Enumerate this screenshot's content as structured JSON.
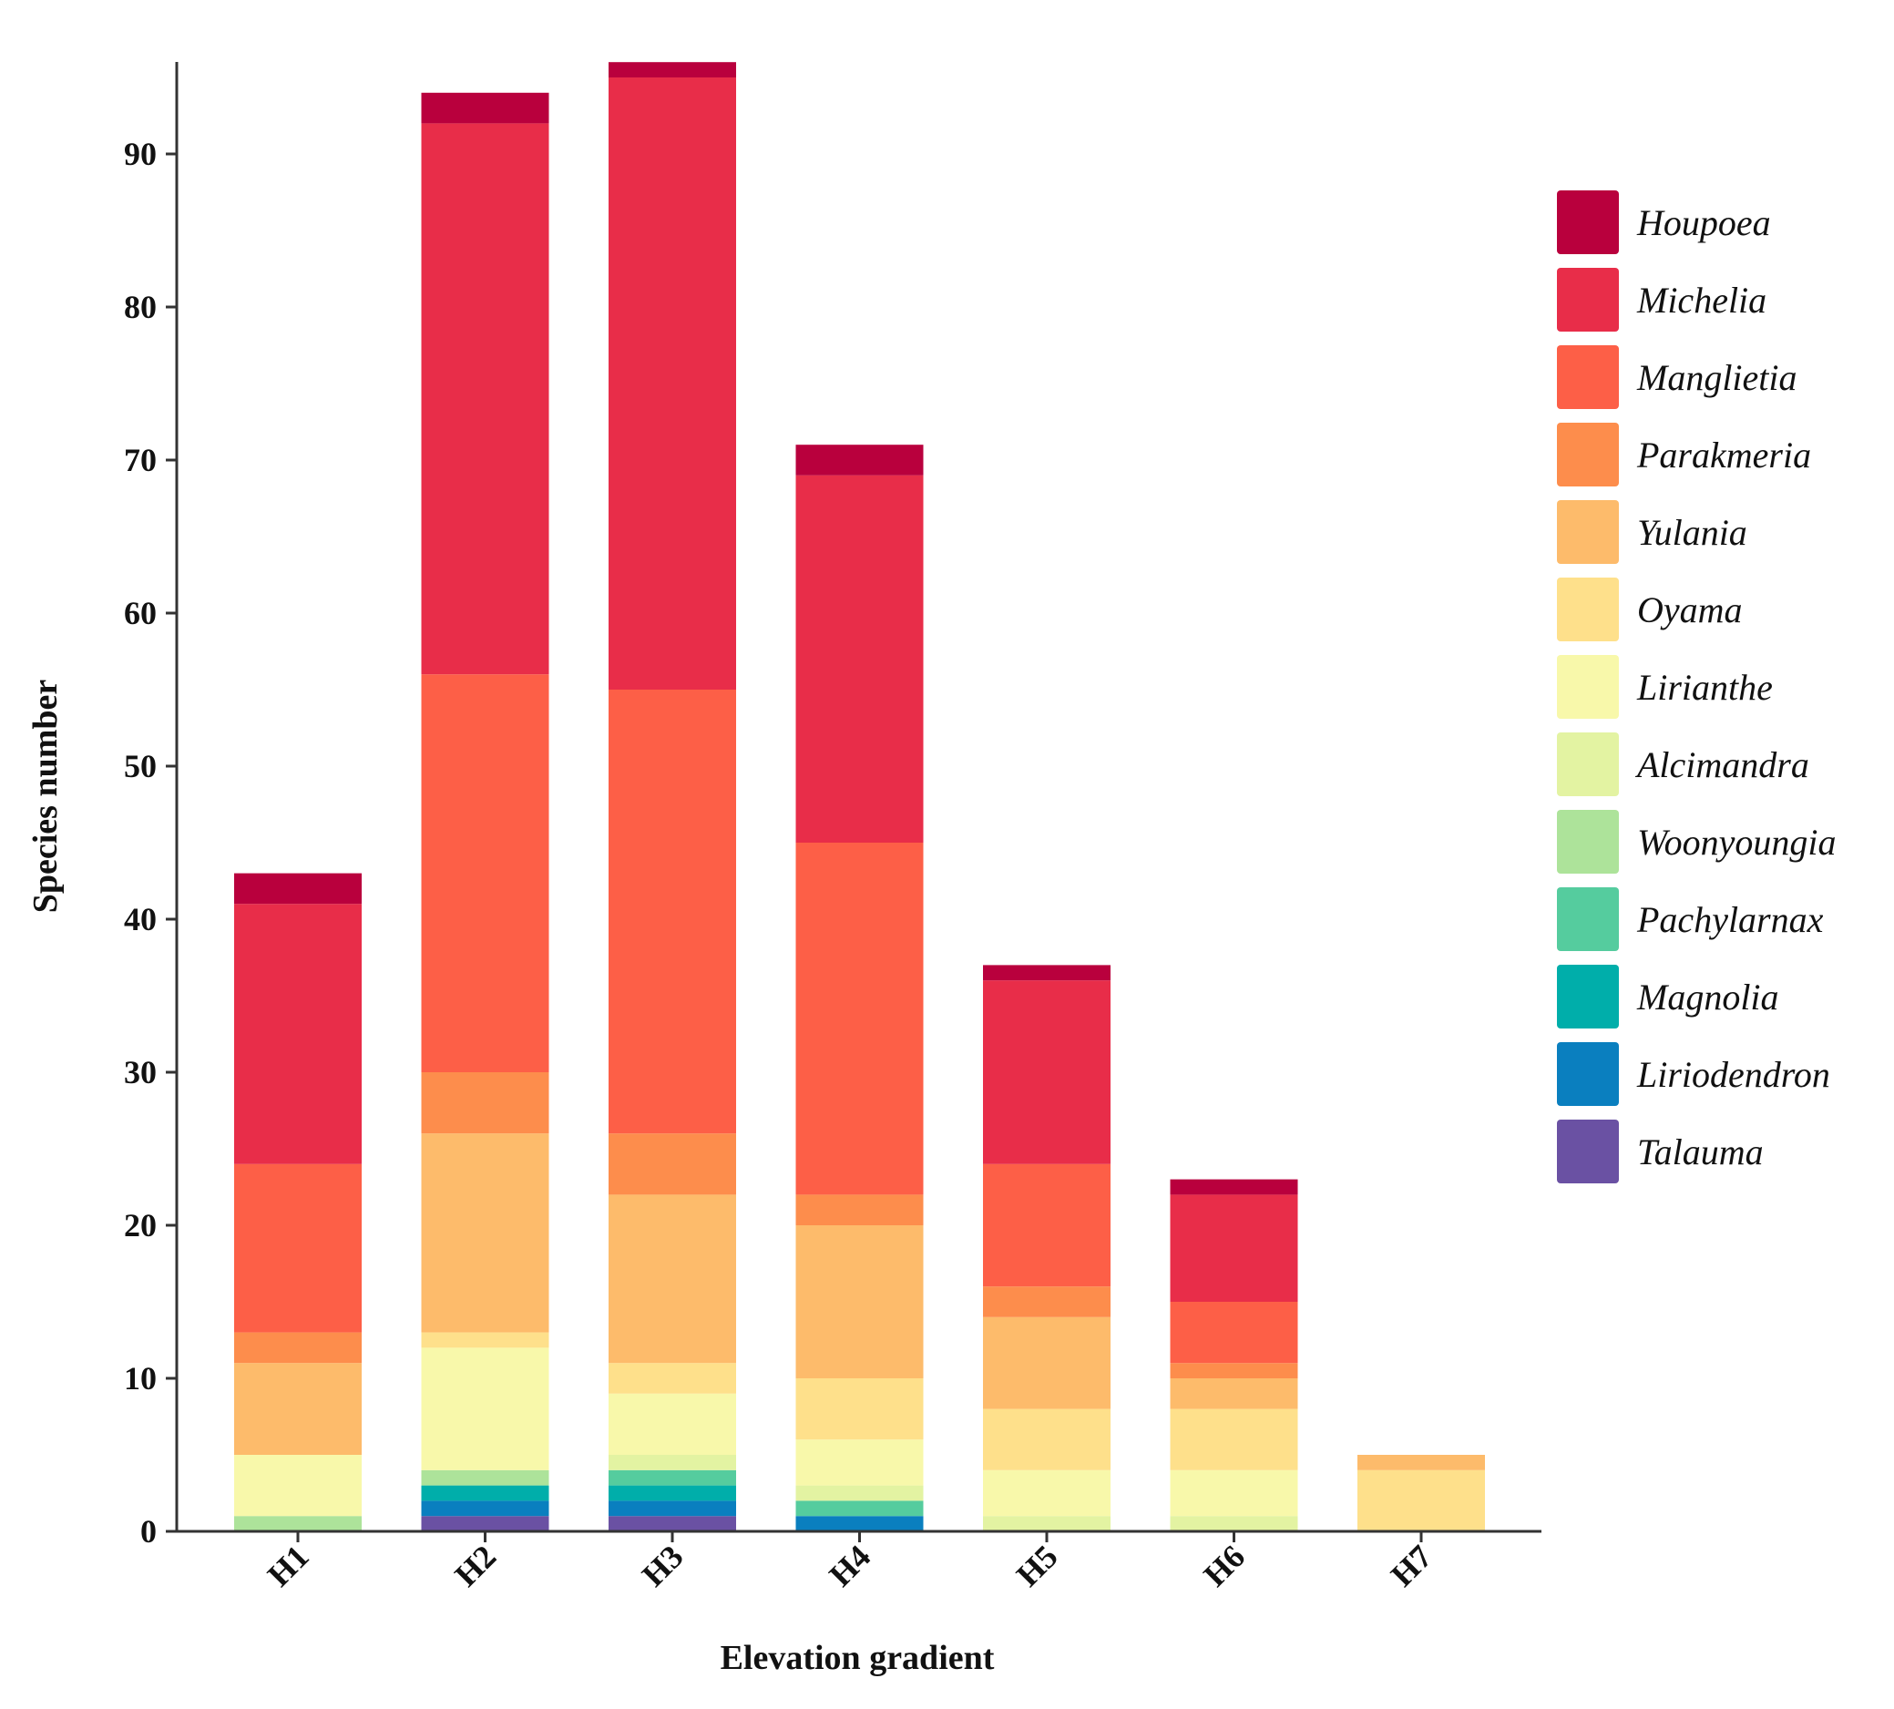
{
  "chart_data": {
    "type": "bar",
    "stacked": true,
    "xlabel": "Elevation gradient",
    "ylabel": "Species number",
    "ylim": [
      0,
      96
    ],
    "yticks": [
      0,
      10,
      20,
      30,
      40,
      50,
      60,
      70,
      80,
      90
    ],
    "categories": [
      "H1",
      "H2",
      "H3",
      "H4",
      "H5",
      "H6",
      "H7"
    ],
    "legend_position": "right",
    "grid": false,
    "series": [
      {
        "name": "Talauma",
        "color": "#6a51a3",
        "values": [
          0,
          1,
          1,
          0,
          0,
          0,
          0
        ]
      },
      {
        "name": "Liriodendron",
        "color": "#0a7fbf",
        "values": [
          0,
          1,
          1,
          1,
          0,
          0,
          0
        ]
      },
      {
        "name": "Magnolia",
        "color": "#00aeaa",
        "values": [
          0,
          1,
          1,
          0,
          0,
          0,
          0
        ]
      },
      {
        "name": "Pachylarnax",
        "color": "#55cc9e",
        "values": [
          0,
          0,
          1,
          1,
          0,
          0,
          0
        ]
      },
      {
        "name": "Woonyoungia",
        "color": "#ade39a",
        "values": [
          1,
          1,
          0,
          0,
          0,
          0,
          0
        ]
      },
      {
        "name": "Alcimandra",
        "color": "#e3f3a2",
        "values": [
          0,
          0,
          1,
          1,
          1,
          1,
          0
        ]
      },
      {
        "name": "Lirianthe",
        "color": "#f8f8aa",
        "values": [
          4,
          8,
          4,
          3,
          3,
          3,
          0
        ]
      },
      {
        "name": "Oyama",
        "color": "#fee08b",
        "values": [
          0,
          1,
          2,
          4,
          4,
          4,
          4
        ]
      },
      {
        "name": "Yulania",
        "color": "#fdbb6b",
        "values": [
          6,
          13,
          11,
          10,
          6,
          2,
          1
        ]
      },
      {
        "name": "Parakmeria",
        "color": "#fd8d4c",
        "values": [
          2,
          4,
          4,
          2,
          2,
          1,
          0
        ]
      },
      {
        "name": "Manglietia",
        "color": "#fd5f47",
        "values": [
          11,
          26,
          29,
          23,
          8,
          4,
          0
        ]
      },
      {
        "name": "Michelia",
        "color": "#e82d49",
        "values": [
          17,
          36,
          40,
          24,
          12,
          7,
          0
        ]
      },
      {
        "name": "Houpoea",
        "color": "#b9003d",
        "values": [
          2,
          2,
          1,
          2,
          1,
          1,
          0
        ]
      }
    ]
  }
}
